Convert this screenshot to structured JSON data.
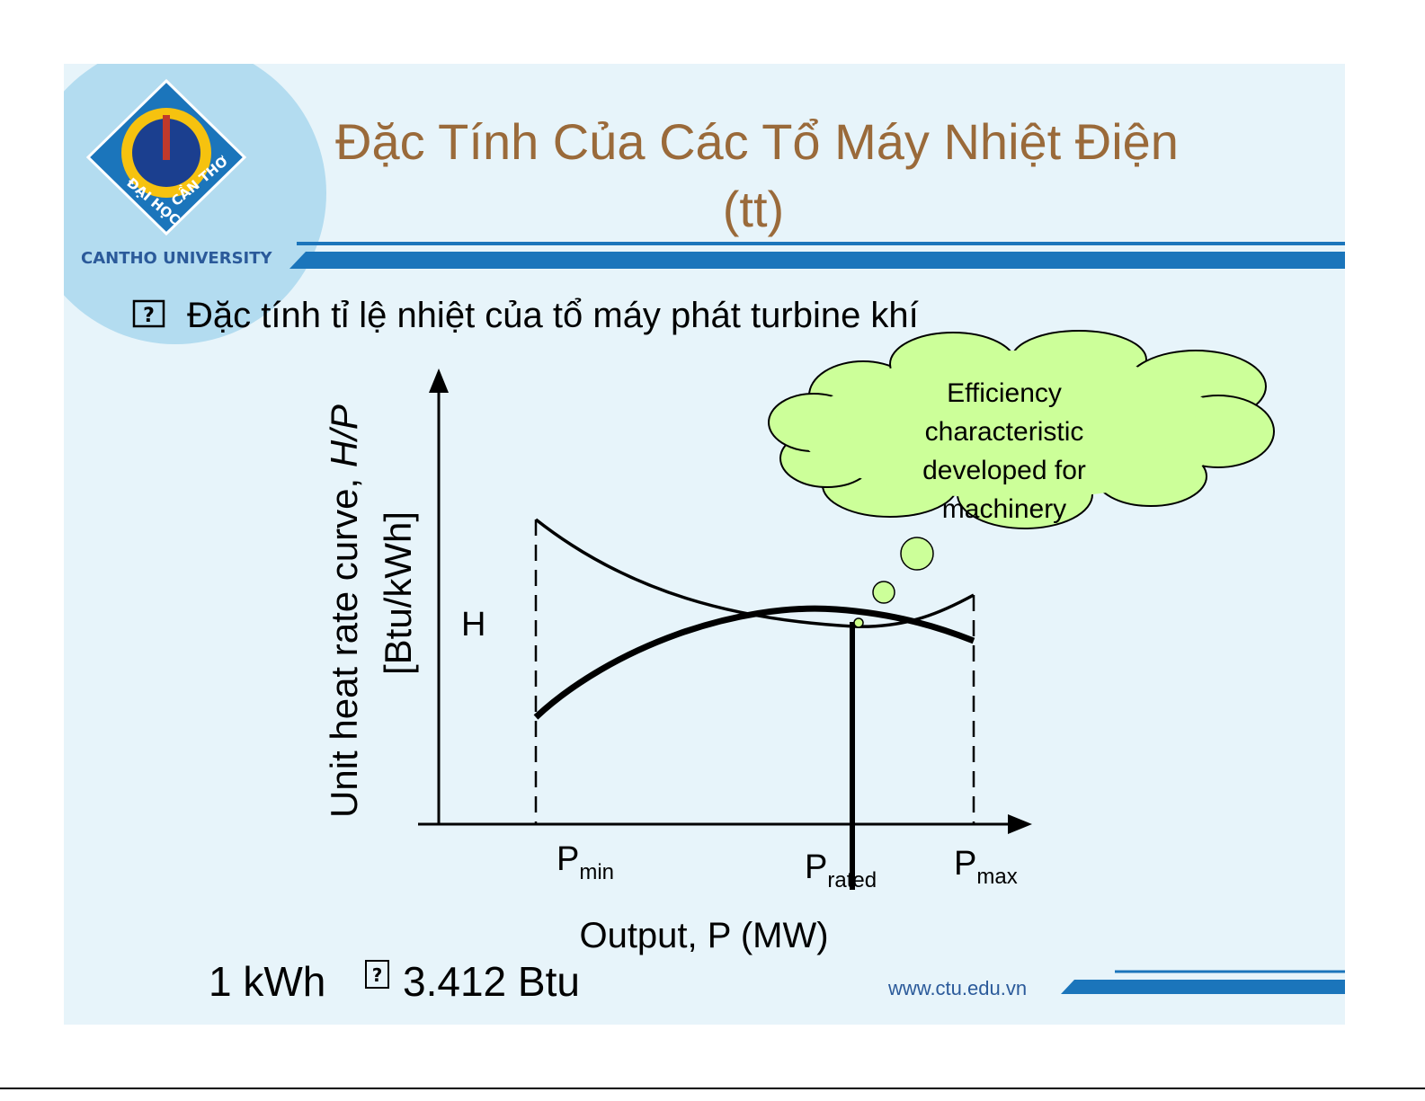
{
  "header": {
    "title": "Đặc Tính Của Các Tổ Máy Nhiệt Điện",
    "title_cont": "(tt)"
  },
  "logo": {
    "top": "ĐẠI HỌC",
    "right": "CẦN THƠ",
    "caption": "CANTHO UNIVERSITY"
  },
  "bullet": {
    "symbol": "?",
    "text": "Đặc tính tỉ lệ nhiệt của tổ máy phát turbine khí"
  },
  "diagram": {
    "y_label": {
      "text": "Unit heat rate curve, ",
      "italic": "H/P",
      "unit": "[Btu/kWh]"
    },
    "curve_label": "H",
    "x_ticks": [
      {
        "main": "P",
        "sub": "min"
      },
      {
        "main": "P",
        "sub": "rated"
      },
      {
        "main": "P",
        "sub": "max"
      }
    ],
    "x_label": "Output, P (MW)",
    "thought": [
      "Efficiency",
      "characteristic",
      "developed for",
      "machinery"
    ]
  },
  "formula": {
    "left": "1 kWh",
    "symbol": "?",
    "right": "3.412 Btu"
  },
  "footer": {
    "url": "www.ctu.edu.vn"
  }
}
